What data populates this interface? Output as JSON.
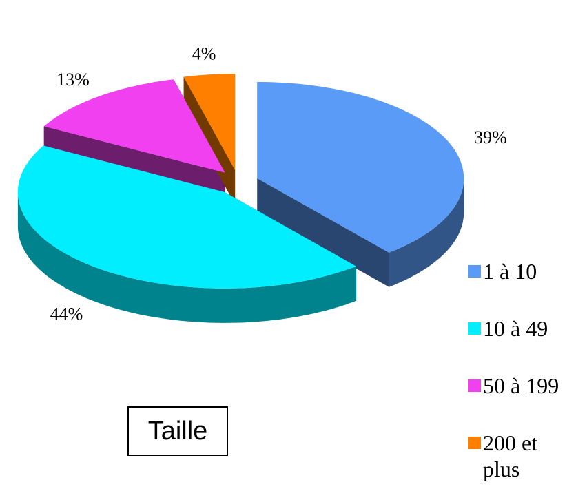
{
  "chart_data": {
    "type": "pie3d",
    "title": "Taille",
    "categories": [
      "1 à 10",
      "10 à 49",
      "50 à 199",
      "200 et plus"
    ],
    "values": [
      39,
      44,
      13,
      4
    ],
    "value_labels": [
      "39%",
      "44%",
      "13%",
      "4%"
    ],
    "colors": [
      "#5b9bf8",
      "#00eeff",
      "#f040f0",
      "#ff8000"
    ],
    "legend": "right"
  }
}
